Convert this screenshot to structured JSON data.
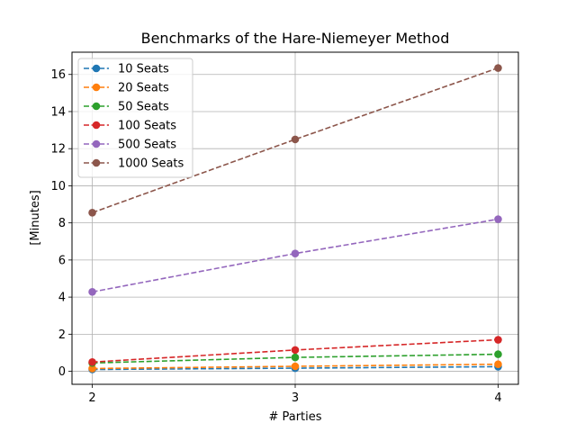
{
  "chart_data": {
    "type": "line",
    "title": "Benchmarks of the Hare-Niemeyer Method",
    "xlabel": "# Parties",
    "ylabel": "[Minutes]",
    "x": [
      2,
      3,
      4
    ],
    "xticks": [
      2,
      3,
      4
    ],
    "yticks": [
      0,
      2,
      4,
      6,
      8,
      10,
      12,
      14,
      16
    ],
    "xlim": [
      1.9,
      4.1
    ],
    "ylim": [
      -0.7,
      17.2
    ],
    "grid": true,
    "legend_position": "top-left",
    "series": [
      {
        "name": "10 Seats",
        "values": [
          0.1,
          0.17,
          0.25
        ],
        "color": "#1f77b4"
      },
      {
        "name": "20 Seats",
        "values": [
          0.15,
          0.27,
          0.38
        ],
        "color": "#ff7f0e"
      },
      {
        "name": "50 Seats",
        "values": [
          0.45,
          0.75,
          0.92
        ],
        "color": "#2ca02c"
      },
      {
        "name": "100 Seats",
        "values": [
          0.5,
          1.15,
          1.7
        ],
        "color": "#d62728"
      },
      {
        "name": "500 Seats",
        "values": [
          4.28,
          6.35,
          8.2
        ],
        "color": "#9467bd"
      },
      {
        "name": "1000 Seats",
        "values": [
          8.55,
          12.5,
          16.35
        ],
        "color": "#8c564b"
      }
    ]
  }
}
